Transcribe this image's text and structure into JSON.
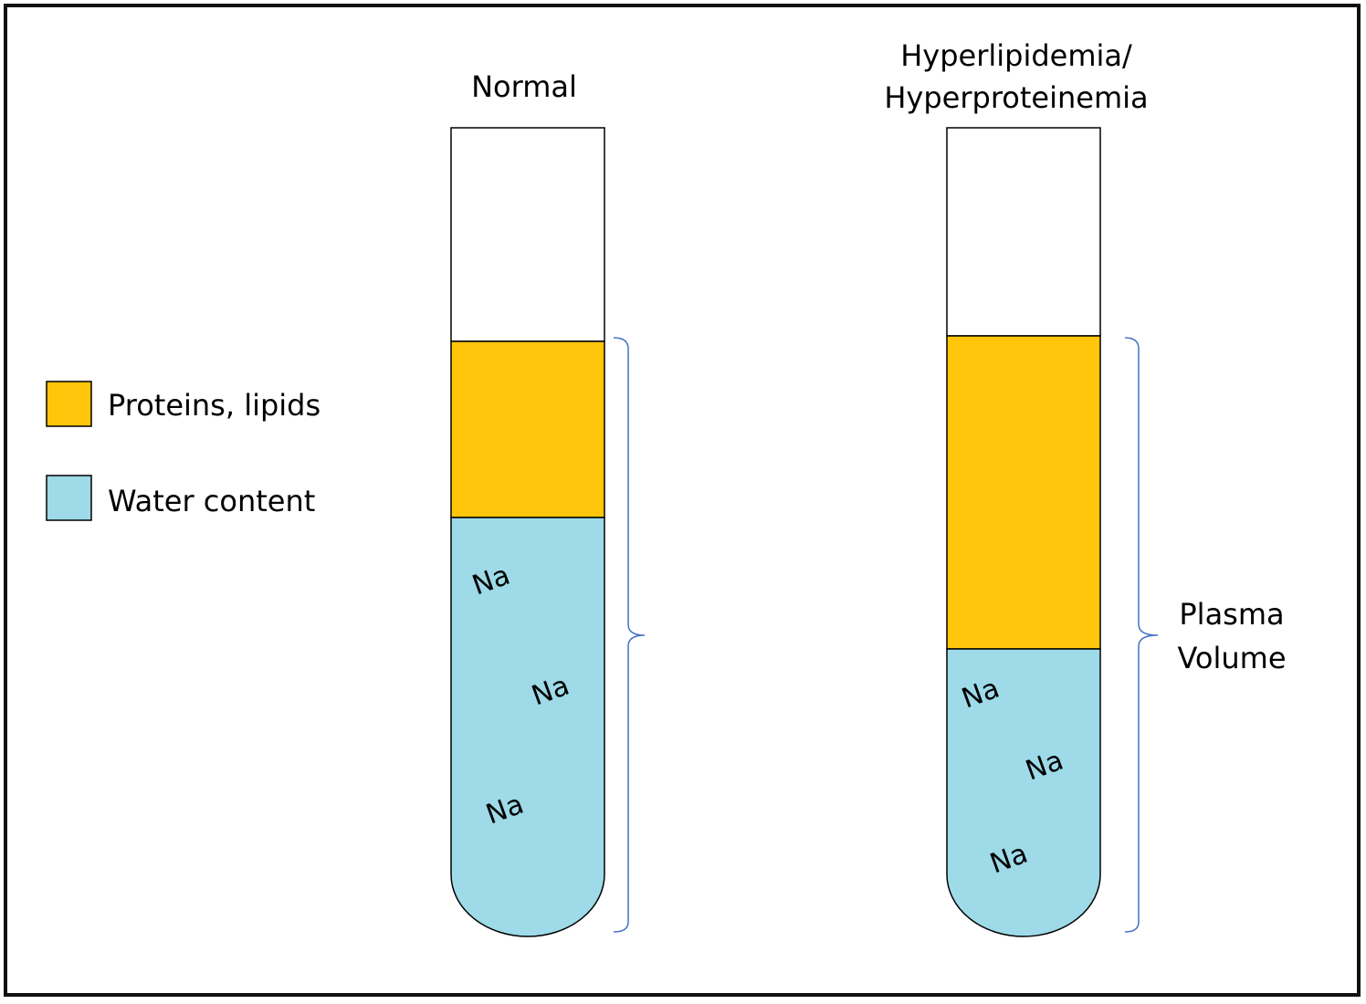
{
  "colors": {
    "proteins_lipids": "#FFC60B",
    "water": "#9EDAE8",
    "tube_outline": "#000000",
    "bracket": "#4472C4",
    "frame": "#111111"
  },
  "legend": {
    "items": [
      {
        "label": "Proteins, lipids"
      },
      {
        "label": "Water content"
      }
    ]
  },
  "tubes": [
    {
      "title_lines": [
        "Normal"
      ],
      "sodium_labels": [
        "Na",
        "Na",
        "Na"
      ]
    },
    {
      "title_lines": [
        "Hyperlipidemia/",
        "Hyperproteinemia"
      ],
      "sodium_labels": [
        "Na",
        "Na",
        "Na"
      ]
    }
  ],
  "bracket_label": {
    "lines": [
      "Plasma",
      "Volume"
    ]
  }
}
